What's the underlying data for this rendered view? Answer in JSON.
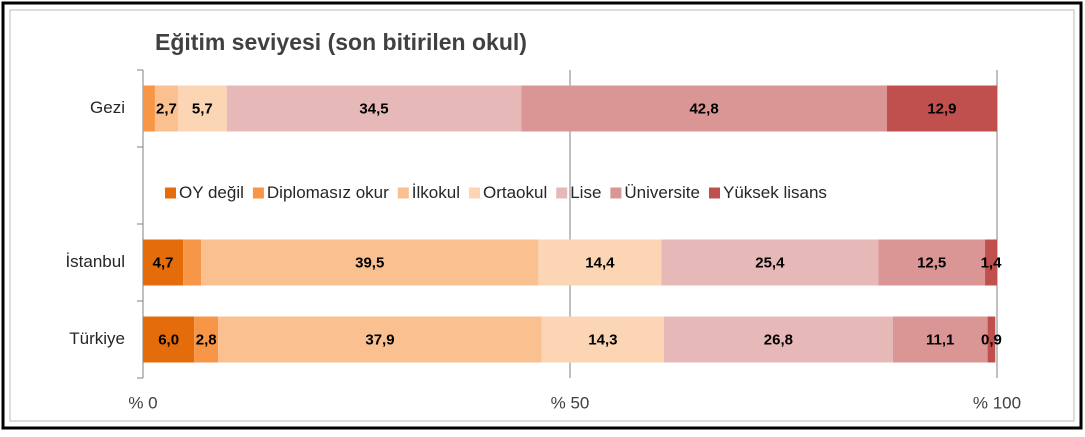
{
  "chart_data": {
    "type": "stacked-bar-horizontal",
    "title": "Eğitim seviyesi (son bitirilen okul)",
    "categories": [
      "Gezi",
      "İstanbul",
      "Türkiye"
    ],
    "series": [
      {
        "name": "OY değil",
        "color": "#e46c0a",
        "values": [
          0,
          4.7,
          6.0
        ],
        "value_labels": [
          null,
          "4,7",
          "6,0"
        ]
      },
      {
        "name": "Diplomasız okur",
        "color": "#f79646",
        "values": [
          1.4,
          2.1,
          2.8
        ],
        "value_labels": [
          null,
          null,
          "2,8"
        ]
      },
      {
        "name": "İlkokul",
        "color": "#fac090",
        "values": [
          2.7,
          39.5,
          37.9
        ],
        "value_labels": [
          "2,7",
          "39,5",
          "37,9"
        ]
      },
      {
        "name": "Ortaokul",
        "color": "#fcd5b4",
        "values": [
          5.7,
          14.4,
          14.3
        ],
        "value_labels": [
          "5,7",
          "14,4",
          "14,3"
        ]
      },
      {
        "name": "Lise",
        "color": "#e6b9b8",
        "values": [
          34.5,
          25.4,
          26.8
        ],
        "value_labels": [
          "34,5",
          "25,4",
          "26,8"
        ]
      },
      {
        "name": "Üniversite",
        "color": "#d99694",
        "values": [
          42.8,
          12.5,
          11.1
        ],
        "value_labels": [
          "42,8",
          "12,5",
          "11,1"
        ]
      },
      {
        "name": "Yüksek lisans",
        "color": "#c0504d",
        "values": [
          12.9,
          1.4,
          0.9
        ],
        "value_labels": [
          "12,9",
          "1,4",
          "0,9"
        ]
      }
    ],
    "xlim": [
      0,
      100
    ],
    "xticks": [
      {
        "value": 0,
        "label": "% 0"
      },
      {
        "value": 50,
        "label": "% 50"
      },
      {
        "value": 100,
        "label": "% 100"
      }
    ],
    "grid": true
  }
}
